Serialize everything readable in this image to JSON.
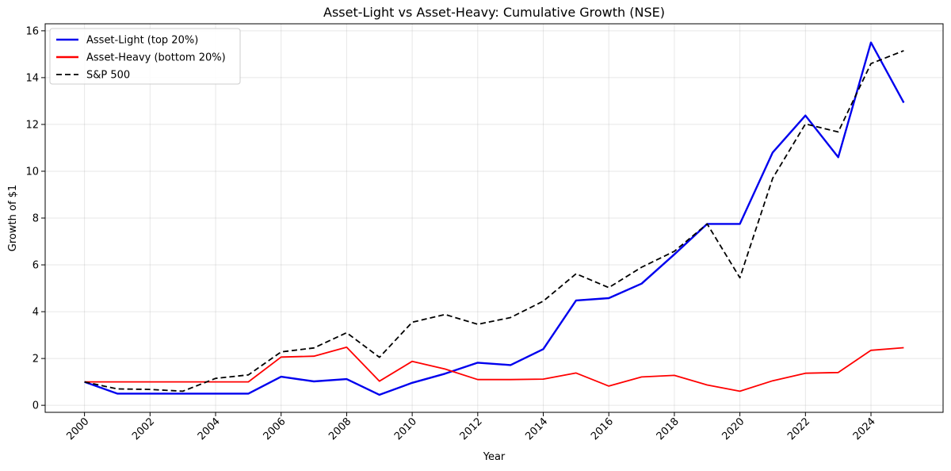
{
  "chart_data": {
    "type": "line",
    "title": "Asset-Light vs Asset-Heavy: Cumulative Growth (NSE)",
    "xlabel": "Year",
    "ylabel": "Growth of $1",
    "xlim": [
      1998.8,
      2026.2
    ],
    "ylim": [
      -0.3,
      16.3
    ],
    "x_ticks": [
      2000,
      2002,
      2004,
      2006,
      2008,
      2010,
      2012,
      2014,
      2016,
      2018,
      2020,
      2022,
      2024
    ],
    "x_tick_labels": [
      "2000",
      "2002",
      "2004",
      "2006",
      "2008",
      "2010",
      "2012",
      "2014",
      "2016",
      "2018",
      "2020",
      "2022",
      "2024"
    ],
    "y_ticks": [
      0,
      2,
      4,
      6,
      8,
      10,
      12,
      14,
      16
    ],
    "y_tick_labels": [
      "0",
      "2",
      "4",
      "6",
      "8",
      "10",
      "12",
      "14",
      "16"
    ],
    "grid": true,
    "legend_position": "top-left",
    "x": [
      2000,
      2001,
      2002,
      2003,
      2004,
      2005,
      2006,
      2007,
      2008,
      2009,
      2010,
      2011,
      2012,
      2013,
      2014,
      2015,
      2016,
      2017,
      2018,
      2019,
      2020,
      2021,
      2022,
      2023,
      2024,
      2025
    ],
    "series": [
      {
        "name": "Asset-Light (top 20%)",
        "color": "#0000ee",
        "style": "solid",
        "values": [
          1.0,
          0.5,
          0.5,
          0.5,
          0.5,
          0.5,
          1.22,
          1.02,
          1.12,
          0.45,
          0.96,
          1.35,
          1.82,
          1.72,
          2.4,
          4.48,
          4.58,
          5.2,
          6.45,
          7.75,
          7.75,
          10.8,
          12.38,
          10.6,
          15.5,
          12.93
        ]
      },
      {
        "name": "Asset-Heavy (bottom 20%)",
        "color": "#ff0000",
        "style": "solid",
        "values": [
          1.0,
          1.0,
          1.0,
          1.0,
          1.0,
          1.0,
          2.06,
          2.1,
          2.48,
          1.03,
          1.88,
          1.55,
          1.1,
          1.1,
          1.12,
          1.38,
          0.82,
          1.21,
          1.28,
          0.87,
          0.6,
          1.05,
          1.37,
          1.4,
          2.35,
          2.46
        ]
      },
      {
        "name": "S&P 500",
        "color": "#000000",
        "style": "dashed",
        "values": [
          1.0,
          0.7,
          0.68,
          0.6,
          1.15,
          1.3,
          2.28,
          2.45,
          3.1,
          2.05,
          3.55,
          3.88,
          3.46,
          3.75,
          4.45,
          5.62,
          5.03,
          5.9,
          6.58,
          7.75,
          5.45,
          9.7,
          12.02,
          11.68,
          14.6,
          15.15
        ]
      }
    ]
  }
}
